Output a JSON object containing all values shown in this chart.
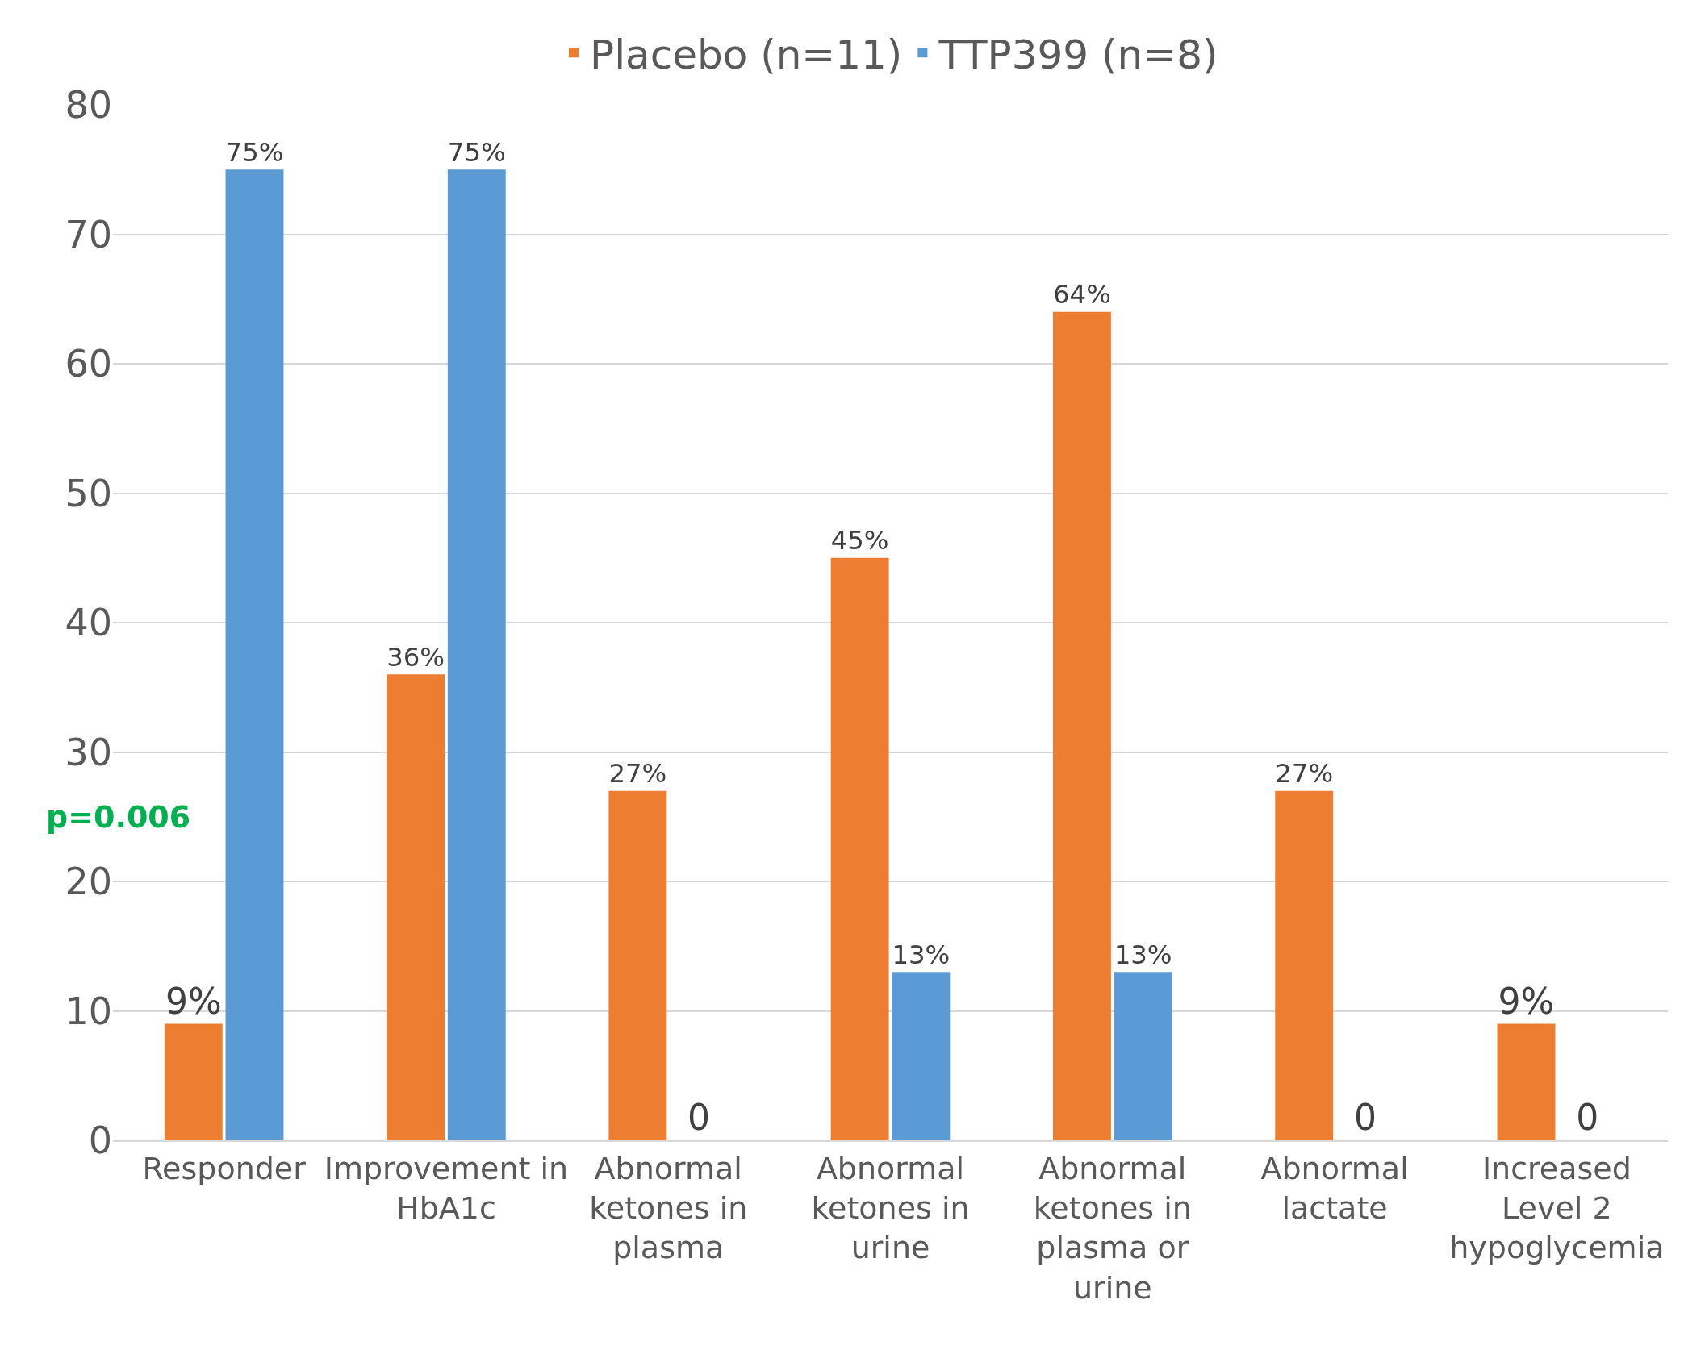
{
  "chart_data": {
    "type": "bar",
    "categories": [
      "Responder",
      "Improvement in HbA1c",
      "Abnormal ketones in plasma",
      "Abnormal ketones in urine",
      "Abnormal ketones in plasma or urine",
      "Abnormal lactate",
      "Increased Level 2 hypoglycemia"
    ],
    "series": [
      {
        "name": "Placebo (n=11)",
        "color": "#ed7d31",
        "values": [
          9,
          36,
          27,
          45,
          64,
          27,
          9
        ],
        "value_labels": [
          "9%",
          "36%",
          "27%",
          "45%",
          "64%",
          "27%",
          "9%"
        ]
      },
      {
        "name": "TTP399 (n=8)",
        "color": "#5b9bd5",
        "values": [
          75,
          75,
          0,
          13,
          13,
          0,
          0
        ],
        "value_labels": [
          "75%",
          "75%",
          "0",
          "13%",
          "13%",
          "0",
          "0"
        ]
      }
    ],
    "ylim": [
      0,
      80
    ],
    "yticks": [
      0,
      10,
      20,
      30,
      40,
      50,
      60,
      70,
      80
    ],
    "grid": "y",
    "legend": "top",
    "annotations": [
      {
        "text": "p=0.006",
        "x": "Responder",
        "y": 25
      }
    ]
  }
}
